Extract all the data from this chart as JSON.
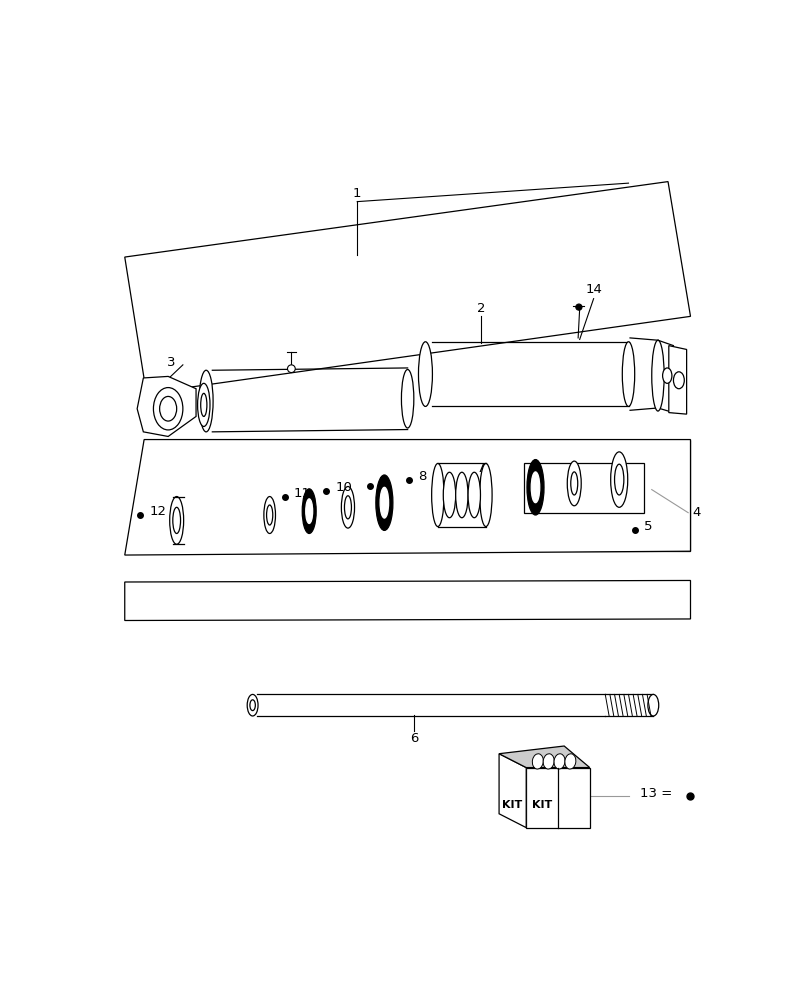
{
  "bg_color": "#ffffff",
  "line_color": "#000000",
  "gray_line": "#999999",
  "figure_width": 8.12,
  "figure_height": 10.0,
  "dpi": 100
}
